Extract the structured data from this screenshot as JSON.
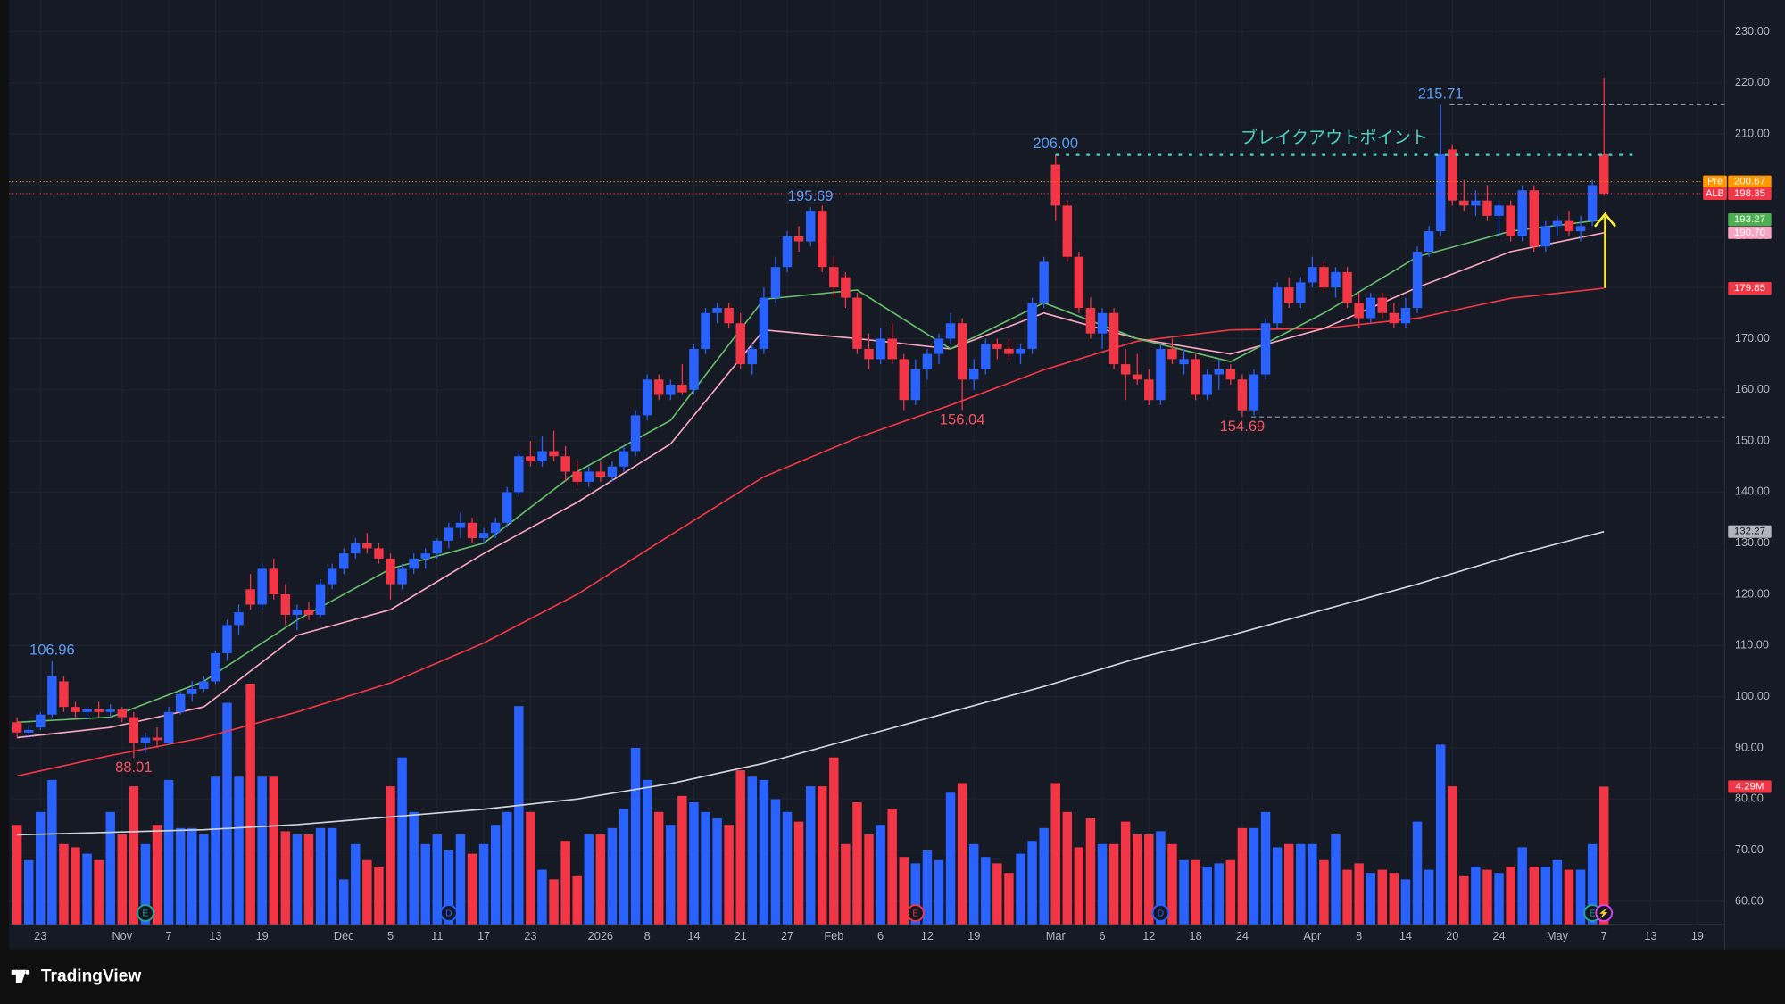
{
  "chart_data": {
    "type": "candlestick",
    "brand": "TradingView",
    "annotation": "ブレイクアウトポイント",
    "xlim": [
      -0.683,
      146.34
    ],
    "ylim": [
      55.5,
      236.2
    ],
    "vlim": [
      0,
      28.8
    ],
    "grid": true,
    "up_color": "#2962ff",
    "down_color": "#f23645",
    "yticks": [
      {
        "value": 60,
        "label": "60.00"
      },
      {
        "value": 70,
        "label": "70.00"
      },
      {
        "value": 80,
        "label": "80.00"
      },
      {
        "value": 90,
        "label": "90.00"
      },
      {
        "value": 100,
        "label": "100.00"
      },
      {
        "value": 110,
        "label": "110.00"
      },
      {
        "value": 120,
        "label": "120.00"
      },
      {
        "value": 130,
        "label": "130.00"
      },
      {
        "value": 140,
        "label": "140.00"
      },
      {
        "value": 150,
        "label": "150.00"
      },
      {
        "value": 160,
        "label": "160.00"
      },
      {
        "value": 170,
        "label": "170.00"
      },
      {
        "value": 180,
        "label": "180.00"
      },
      {
        "value": 190,
        "label": "190.00"
      },
      {
        "value": 200,
        "label": "200.00"
      },
      {
        "value": 210,
        "label": "210.00"
      },
      {
        "value": 220,
        "label": "220.00"
      },
      {
        "value": 230,
        "label": "230.00"
      }
    ],
    "xticks": [
      {
        "value": 2,
        "label": "23"
      },
      {
        "value": 9,
        "label": "Nov"
      },
      {
        "value": 13,
        "label": "7"
      },
      {
        "value": 17,
        "label": "13"
      },
      {
        "value": 21,
        "label": "19"
      },
      {
        "value": 28,
        "label": "Dec"
      },
      {
        "value": 32,
        "label": "5"
      },
      {
        "value": 36,
        "label": "11"
      },
      {
        "value": 40,
        "label": "17"
      },
      {
        "value": 44,
        "label": "23"
      },
      {
        "value": 50,
        "label": "2026"
      },
      {
        "value": 54,
        "label": "8"
      },
      {
        "value": 58,
        "label": "14"
      },
      {
        "value": 62,
        "label": "21"
      },
      {
        "value": 66,
        "label": "27"
      },
      {
        "value": 70,
        "label": "Feb"
      },
      {
        "value": 74,
        "label": "6"
      },
      {
        "value": 78,
        "label": "12"
      },
      {
        "value": 82,
        "label": "19"
      },
      {
        "value": 89,
        "label": "Mar"
      },
      {
        "value": 93,
        "label": "6"
      },
      {
        "value": 97,
        "label": "12"
      },
      {
        "value": 101,
        "label": "18"
      },
      {
        "value": 105,
        "label": "24"
      },
      {
        "value": 111,
        "label": "Apr"
      },
      {
        "value": 115,
        "label": "8"
      },
      {
        "value": 119,
        "label": "14"
      },
      {
        "value": 123,
        "label": "20"
      },
      {
        "value": 127,
        "label": "24"
      },
      {
        "value": 132,
        "label": "May"
      },
      {
        "value": 136,
        "label": "7"
      },
      {
        "value": 140,
        "label": "13"
      },
      {
        "value": 144,
        "label": "19"
      }
    ],
    "candles": [
      [
        95,
        96,
        92,
        93,
        3.1
      ],
      [
        93,
        94.5,
        92,
        93.5,
        2
      ],
      [
        94,
        97,
        93.5,
        96.5,
        3.5
      ],
      [
        96.5,
        106.96,
        96,
        104,
        4.5
      ],
      [
        103,
        104,
        97,
        98,
        2.5
      ],
      [
        98,
        99,
        96,
        97,
        2.4
      ],
      [
        97,
        98,
        95.5,
        97.5,
        2.2
      ],
      [
        97.5,
        99,
        96,
        97,
        2
      ],
      [
        97,
        98.5,
        96,
        97.5,
        3.5
      ],
      [
        97.5,
        98,
        95,
        96,
        2.8
      ],
      [
        96,
        97,
        88.01,
        91,
        4.3
      ],
      [
        91,
        93,
        89,
        92,
        2.5
      ],
      [
        92,
        94,
        90,
        91.5,
        3.1
      ],
      [
        91,
        98,
        90.5,
        97,
        4.5
      ],
      [
        97,
        101,
        96.5,
        100.5,
        3
      ],
      [
        100.5,
        103,
        99,
        101.5,
        3
      ],
      [
        101.5,
        104,
        101,
        103,
        2.8
      ],
      [
        103,
        109,
        102.5,
        108.5,
        4.6
      ],
      [
        108.5,
        115,
        107,
        114,
        6.9
      ],
      [
        114,
        118,
        112,
        116.5,
        4.6
      ],
      [
        121,
        124,
        117,
        118,
        7.5
      ],
      [
        118,
        126,
        117,
        125,
        4.6
      ],
      [
        125,
        127,
        119,
        120,
        4.6
      ],
      [
        120,
        122,
        114,
        116,
        2.9
      ],
      [
        116,
        118,
        113,
        117,
        2.8
      ],
      [
        117,
        118.5,
        115,
        116,
        2.8
      ],
      [
        116,
        123,
        115.5,
        122,
        3
      ],
      [
        122,
        126,
        121,
        125,
        3
      ],
      [
        125,
        129,
        124,
        128,
        1.4
      ],
      [
        128,
        131,
        127,
        130,
        2.5
      ],
      [
        130,
        132,
        128,
        129,
        2
      ],
      [
        129,
        130,
        126,
        127,
        1.8
      ],
      [
        127,
        128,
        119,
        122,
        4.3
      ],
      [
        122,
        126,
        121,
        125,
        5.2
      ],
      [
        125,
        128,
        124,
        127,
        3.5
      ],
      [
        127,
        129,
        125,
        128,
        2.5
      ],
      [
        128,
        131,
        127,
        130.5,
        2.8
      ],
      [
        130.5,
        134,
        129,
        133,
        2.3
      ],
      [
        133,
        136,
        131,
        134,
        2.8
      ],
      [
        134,
        135,
        130,
        131,
        2.2
      ],
      [
        131,
        133,
        130,
        132,
        2.5
      ],
      [
        132,
        135,
        131,
        134,
        3.1
      ],
      [
        134,
        141,
        133,
        140,
        3.5
      ],
      [
        140,
        148,
        139,
        147,
        6.8
      ],
      [
        147,
        150,
        145,
        146,
        3.5
      ],
      [
        146,
        151,
        145,
        148,
        1.7
      ],
      [
        148,
        152,
        146,
        147,
        1.4
      ],
      [
        147,
        149,
        142,
        144,
        2.6
      ],
      [
        144,
        146,
        141,
        142,
        1.5
      ],
      [
        142,
        145,
        141,
        144,
        2.8
      ],
      [
        144,
        146,
        142,
        143,
        2.8
      ],
      [
        143,
        146,
        142,
        145,
        3
      ],
      [
        145,
        149,
        144,
        148,
        3.6
      ],
      [
        148,
        156,
        147,
        155,
        5.5
      ],
      [
        155,
        163,
        154,
        162,
        4.5
      ],
      [
        162,
        163,
        158,
        159,
        3.5
      ],
      [
        159,
        162,
        158,
        161,
        3.1
      ],
      [
        161,
        165,
        159,
        159.5,
        4
      ],
      [
        160,
        169,
        159,
        168,
        3.8
      ],
      [
        168,
        176,
        167,
        175,
        3.5
      ],
      [
        175,
        177,
        173,
        176,
        3.3
      ],
      [
        176,
        177,
        172,
        173,
        3.1
      ],
      [
        173,
        175,
        164,
        165,
        4.8
      ],
      [
        165,
        169,
        163,
        168,
        4.6
      ],
      [
        168,
        180,
        167,
        178,
        4.5
      ],
      [
        178,
        186,
        177,
        184,
        3.9
      ],
      [
        184,
        191,
        183,
        190,
        3.5
      ],
      [
        190,
        192,
        187,
        189,
        3.2
      ],
      [
        189,
        195.69,
        188,
        195,
        4.3
      ],
      [
        195,
        196,
        183,
        184,
        4.3
      ],
      [
        184,
        186,
        178,
        180,
        5.2
      ],
      [
        182,
        183,
        176,
        178,
        2.5
      ],
      [
        178,
        179,
        167,
        168,
        3.8
      ],
      [
        168,
        171,
        164,
        166,
        2.8
      ],
      [
        166,
        172,
        165,
        170,
        3.1
      ],
      [
        170,
        173,
        165,
        166,
        3.6
      ],
      [
        166,
        167,
        156,
        158,
        2.1
      ],
      [
        158,
        166,
        157,
        164,
        1.9
      ],
      [
        164,
        168,
        162,
        167,
        2.3
      ],
      [
        167,
        171,
        165,
        170,
        2
      ],
      [
        170,
        175,
        169,
        173,
        4.1
      ],
      [
        173,
        174,
        156.04,
        162,
        4.4
      ],
      [
        162,
        166,
        160,
        164,
        2.5
      ],
      [
        164,
        170,
        163,
        169,
        2.1
      ],
      [
        169,
        170,
        166,
        168,
        1.9
      ],
      [
        168,
        170,
        166,
        167,
        1.6
      ],
      [
        167,
        169,
        165,
        168,
        2.2
      ],
      [
        168,
        178,
        167,
        177,
        2.6
      ],
      [
        177,
        186,
        176,
        185,
        3
      ],
      [
        204,
        206,
        193,
        196,
        4.4
      ],
      [
        196,
        197,
        185,
        186,
        3.5
      ],
      [
        186,
        187,
        175,
        176,
        2.4
      ],
      [
        176,
        178,
        170,
        171,
        3.3
      ],
      [
        171,
        176,
        168,
        175,
        2.5
      ],
      [
        175,
        176,
        164,
        165,
        2.5
      ],
      [
        165,
        168,
        158,
        163,
        3.2
      ],
      [
        163,
        167,
        161,
        162,
        2.8
      ],
      [
        162,
        164,
        157,
        158,
        2.8
      ],
      [
        158,
        169,
        157,
        168,
        2.9
      ],
      [
        168,
        170,
        165,
        166,
        2.5
      ],
      [
        165,
        168,
        163,
        166,
        2
      ],
      [
        166,
        167,
        158,
        159,
        2
      ],
      [
        159,
        164,
        158,
        163,
        1.8
      ],
      [
        163,
        166,
        160,
        164,
        1.9
      ],
      [
        164,
        165,
        161,
        162,
        2
      ],
      [
        162,
        163,
        154.69,
        156,
        3
      ],
      [
        156,
        164,
        155,
        163,
        3
      ],
      [
        163,
        174,
        162,
        173,
        3.5
      ],
      [
        173,
        181,
        172,
        180,
        2.4
      ],
      [
        180,
        182,
        176,
        177,
        2.5
      ],
      [
        177,
        182,
        176,
        181,
        2.5
      ],
      [
        181,
        186,
        180,
        184,
        2.5
      ],
      [
        184,
        185,
        179,
        180,
        2
      ],
      [
        180,
        184,
        178,
        183,
        2.8
      ],
      [
        183,
        184,
        176,
        177,
        1.7
      ],
      [
        177,
        179,
        172,
        174,
        1.9
      ],
      [
        174,
        179,
        173,
        178,
        1.6
      ],
      [
        178,
        179,
        174,
        175,
        1.7
      ],
      [
        175,
        177,
        172,
        173,
        1.6
      ],
      [
        173,
        178,
        172,
        176,
        1.4
      ],
      [
        176,
        188,
        175,
        187,
        3.2
      ],
      [
        187,
        192,
        186,
        191,
        1.7
      ],
      [
        191,
        215.71,
        190,
        206,
        5.6
      ],
      [
        207,
        208,
        196,
        197,
        4.3
      ],
      [
        197,
        201,
        195,
        196,
        1.5
      ],
      [
        196,
        199,
        194,
        197,
        1.8
      ],
      [
        197,
        200,
        193,
        194,
        1.7
      ],
      [
        194,
        197,
        190,
        196,
        1.6
      ],
      [
        196,
        197,
        189,
        190,
        1.8
      ],
      [
        190,
        200,
        189,
        199,
        2.4
      ],
      [
        199,
        200,
        187,
        188,
        1.8
      ],
      [
        188,
        193,
        187,
        192,
        1.8
      ],
      [
        192,
        194,
        190,
        193,
        2
      ],
      [
        193,
        195,
        190,
        191,
        1.7
      ],
      [
        191,
        194,
        189,
        192,
        1.7
      ],
      [
        193,
        201,
        192,
        200,
        2.5
      ],
      [
        206,
        221,
        198,
        198.35,
        4.29
      ]
    ],
    "ma": {
      "x": [
        0,
        8,
        16,
        24,
        32,
        40,
        48,
        56,
        64,
        72,
        80,
        88,
        96,
        104,
        112,
        120,
        128,
        136
      ],
      "series": [
        {
          "color": "#d1d4dc",
          "values": [
            73,
            73.5,
            74,
            75,
            76.5,
            78,
            80,
            83,
            87,
            92,
            97,
            102,
            107.5,
            112,
            117,
            122,
            127.5,
            132.27
          ]
        },
        {
          "color": "#f23645",
          "values": [
            84.5,
            88.5,
            92,
            97,
            102.7,
            110.5,
            120,
            131.6,
            143,
            150.6,
            157,
            163.9,
            169.5,
            171.7,
            172,
            174,
            177.9,
            179.85
          ]
        },
        {
          "color": "#f8a5c2",
          "values": [
            92,
            94,
            98,
            112,
            117,
            128,
            138,
            149.4,
            171.7,
            170,
            168,
            175,
            170,
            167,
            172,
            180,
            187,
            190.7
          ]
        },
        {
          "color": "#66bb6a",
          "values": [
            95,
            96,
            103,
            115,
            125,
            130,
            144,
            154,
            177.7,
            179.5,
            168,
            177,
            170,
            165.5,
            175,
            186,
            191,
            193.27
          ]
        }
      ]
    },
    "extremes": [
      {
        "value": 106.96,
        "line": "none"
      },
      {
        "value": 88.01,
        "line": "none"
      },
      {
        "value": 195.69,
        "line": "none"
      },
      {
        "value": 156.04,
        "line": "none"
      },
      {
        "value": 206,
        "label": "206.00",
        "line": "dotted"
      },
      {
        "value": 154.69,
        "line": "dashed"
      },
      {
        "value": 215.71,
        "line": "dashed"
      }
    ],
    "right_labels": [
      {
        "value": 200.67,
        "label": "200.67",
        "tag": "Pre",
        "color": "#ff9800",
        "line": true
      },
      {
        "value": 198.35,
        "label": "198.35",
        "tag": "ALB",
        "color": "#f23645",
        "line": true
      },
      {
        "value": 193.27,
        "label": "193.27",
        "color": "#4caf50"
      },
      {
        "value": 190.7,
        "label": "190.70",
        "color": "#f8a5c2"
      },
      {
        "value": 179.85,
        "label": "179.85",
        "color": "#f23645"
      },
      {
        "value": 132.27,
        "label": "132.27",
        "color": "#b2b5be",
        "text_color": "#131722"
      },
      {
        "value": 4.29,
        "label": "4.29M",
        "color": "#f23645",
        "axis": "volume"
      }
    ],
    "events": [
      {
        "label": "E",
        "index": 11,
        "color": "#26a69a"
      },
      {
        "label": "D",
        "index": 37,
        "color": "#2962ff"
      },
      {
        "label": "E",
        "index": 77,
        "color": "#f23645"
      },
      {
        "label": "D",
        "index": 98,
        "color": "#2962ff"
      },
      {
        "label": "E",
        "index": 135,
        "color": "#26a69a"
      },
      {
        "label": "⚡",
        "index": 136,
        "color": "#e040fb"
      }
    ]
  }
}
